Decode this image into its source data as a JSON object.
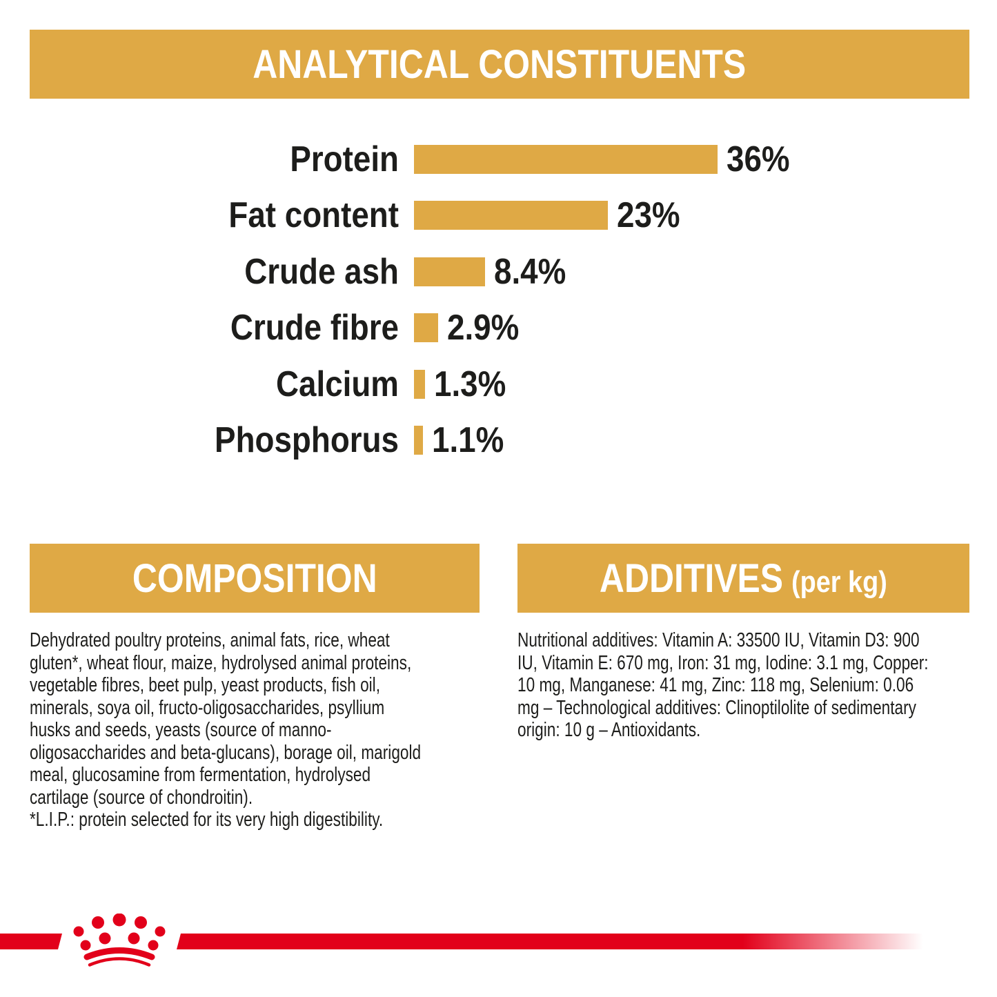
{
  "page": {
    "background": "#ffffff",
    "accent_gold": "#dfa945",
    "brand_red": "#e2001a",
    "text_color": "#1d1d1b"
  },
  "chart_data": {
    "type": "bar",
    "orientation": "horizontal",
    "title": "ANALYTICAL CONSTITUENTS",
    "categories": [
      "Protein",
      "Fat content",
      "Crude ash",
      "Crude fibre",
      "Calcium",
      "Phosphorus"
    ],
    "values": [
      36,
      23,
      8.4,
      2.9,
      1.3,
      1.1
    ],
    "value_labels": [
      "36%",
      "23%",
      "8.4%",
      "2.9%",
      "1.3%",
      "1.1%"
    ],
    "unit": "%",
    "xlim": [
      0,
      36
    ],
    "bar_color": "#dfa945",
    "grid": false,
    "legend": false
  },
  "composition": {
    "title": "COMPOSITION",
    "body": "Dehydrated poultry proteins, animal fats, rice, wheat\ngluten*, wheat flour, maize, hydrolysed animal proteins,\nvegetable fibres, beet pulp, yeast products, fish oil,\nminerals, soya oil, fructo-oligosaccharides, psyllium\nhusks and seeds, yeasts (source of manno-\noligosaccharides and beta-glucans), borage oil, marigold\nmeal, glucosamine from fermentation, hydrolysed\ncartilage (source of chondroitin).\n*L.I.P.: protein selected for its very high digestibility."
  },
  "additives": {
    "title": "ADDITIVES",
    "suffix": "(per kg)",
    "body": "Nutritional additives: Vitamin A: 33500 IU, Vitamin D3: 900\nIU, Vitamin E: 670 mg, Iron: 31 mg, Iodine: 3.1 mg, Copper:\n10 mg, Manganese: 41 mg, Zinc: 118 mg, Selenium: 0.06\nmg – Technological additives: Clinoptilolite of sedimentary\norigin: 10 g – Antioxidants."
  },
  "footer": {
    "logo": "royal-canin-crown"
  }
}
